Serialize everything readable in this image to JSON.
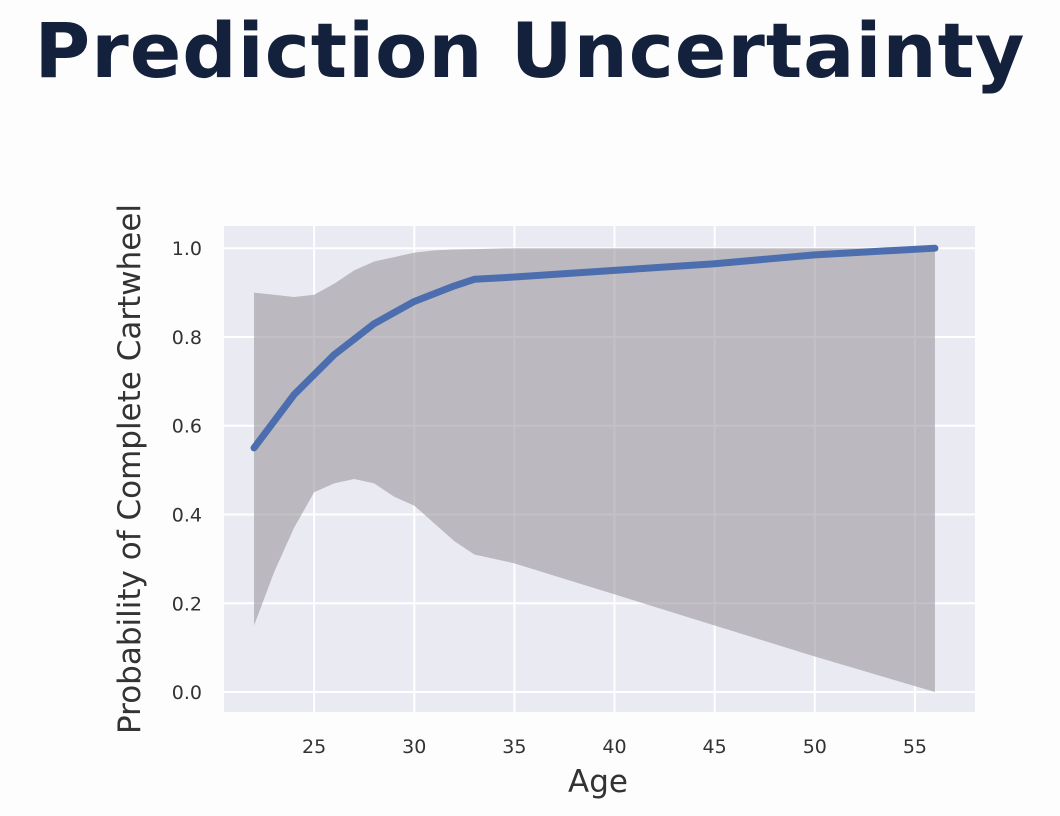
{
  "slide": {
    "title": "Prediction Uncertainty"
  },
  "chart_data": {
    "type": "line",
    "title": "",
    "xlabel": "Age",
    "ylabel": "Probability of Complete Cartwheel",
    "xlim": [
      20.5,
      58
    ],
    "ylim": [
      -0.045,
      1.05
    ],
    "xticks": [
      25,
      30,
      35,
      40,
      45,
      50,
      55
    ],
    "yticks": [
      0.0,
      0.2,
      0.4,
      0.6,
      0.8,
      1.0
    ],
    "ytick_labels": [
      "0.0",
      "0.2",
      "0.4",
      "0.6",
      "0.8",
      "1.0"
    ],
    "grid": true,
    "colors": {
      "background": "#eaeaf2",
      "grid": "#ffffff",
      "line": "#4c6eaf",
      "band": "#9b979c"
    },
    "series": [
      {
        "x": [
          22,
          24,
          26,
          28,
          30,
          32,
          33,
          35,
          40,
          45,
          50,
          56
        ],
        "values": [
          0.55,
          0.67,
          0.76,
          0.83,
          0.88,
          0.915,
          0.93,
          0.935,
          0.95,
          0.965,
          0.985,
          1.0
        ]
      }
    ],
    "band": {
      "x": [
        22,
        23,
        24,
        25,
        26,
        27,
        28,
        29,
        30,
        31,
        32,
        33,
        35,
        40,
        45,
        50,
        56
      ],
      "upper": [
        0.9,
        0.895,
        0.89,
        0.895,
        0.92,
        0.95,
        0.97,
        0.98,
        0.99,
        0.995,
        0.997,
        0.998,
        1.0,
        1.0,
        1.0,
        1.0,
        1.0
      ],
      "lower": [
        0.15,
        0.27,
        0.37,
        0.45,
        0.47,
        0.48,
        0.47,
        0.44,
        0.42,
        0.38,
        0.34,
        0.31,
        0.29,
        0.22,
        0.15,
        0.08,
        0.0
      ]
    }
  }
}
